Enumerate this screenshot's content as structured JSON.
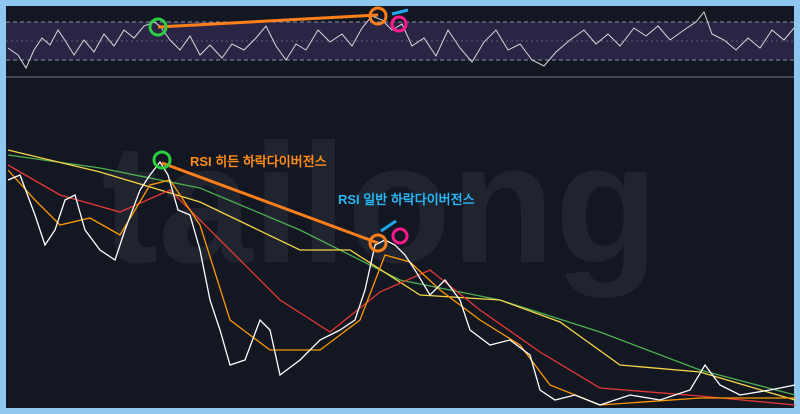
{
  "watermark": "tailong",
  "annotations": {
    "hidden_divergence": "RSI 히든 하락다이버전스",
    "regular_divergence": "RSI 일반 하락다이버전스"
  }
}
